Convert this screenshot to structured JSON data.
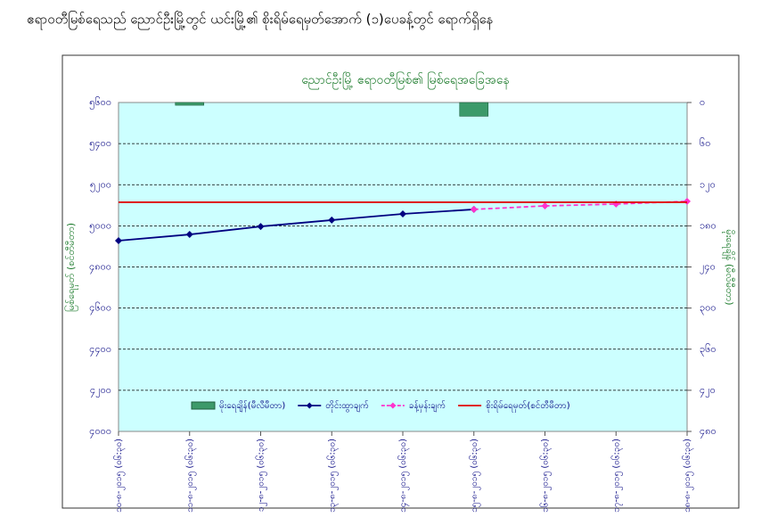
{
  "page_title": "ဧရာဝတီမြစ်ရေသည် ညောင်ဦးမြို့တွင် ယင်းမြို့၏ စိုးရိမ်ရေမှတ်အောက် (၁)ပေခန့်တွင် ရောက်ရှိနေ",
  "chart_data": {
    "type": "line",
    "title": "ညောင်ဦးမြို့ ဧရာဝတီမြစ်၏ မြစ်ရေအခြေအနေ",
    "y_label": "မြစ်ရေမှတ် (စင်တီမီတာ)",
    "y2_label": "မိုးရေချိန် (မီလီမီတာ)",
    "categories": [
      "၁၀-၈-၂၀၁၅ (၀၆:၃၀)",
      "၁၁-၈-၂၀၁၅ (၀၆:၃၀)",
      "၁၂-၈-၂၀၁၅ (၀၆:၃၀)",
      "၁၃-၈-၂၀၁၅ (၀၆:၃၀)",
      "၁၄-၈-၂၀၁၅ (၀၆:၃၀)",
      "၁၅-၈-၂၀၁၅ (၀၆:၃၀)",
      "၁၆-၈-၂၀၁၅ (၀၆:၃၀)",
      "၁၇-၈-၂၀၁၅ (၀၆:၃၀)",
      "၁၈-၈-၂၀၁၅ (၀၆:၃၀)"
    ],
    "ylim": [
      4000,
      5600
    ],
    "yticks": [
      {
        "value": 4000,
        "label": "၄၀၀၀"
      },
      {
        "value": 4200,
        "label": "၄၂၀၀"
      },
      {
        "value": 4400,
        "label": "၄၄၀၀"
      },
      {
        "value": 4600,
        "label": "၄၆၀၀"
      },
      {
        "value": 4800,
        "label": "၄၈၀၀"
      },
      {
        "value": 5000,
        "label": "၅၀၀၀"
      },
      {
        "value": 5200,
        "label": "၅၂၀၀"
      },
      {
        "value": 5400,
        "label": "၅၄၀၀"
      },
      {
        "value": 5600,
        "label": "၅၆၀၀"
      }
    ],
    "y2lim": [
      480,
      0
    ],
    "y2ticks": [
      {
        "value": 0,
        "label": "၀"
      },
      {
        "value": 60,
        "label": "၆၀"
      },
      {
        "value": 120,
        "label": "၁၂၀"
      },
      {
        "value": 180,
        "label": "၁၈၀"
      },
      {
        "value": 240,
        "label": "၂၄၀"
      },
      {
        "value": 300,
        "label": "၃၀၀"
      },
      {
        "value": 360,
        "label": "၃၆၀"
      },
      {
        "value": 420,
        "label": "၄၂၀"
      },
      {
        "value": 480,
        "label": "၄၈၀"
      }
    ],
    "grid": true,
    "series": [
      {
        "name": "မိုးရေချိန်(မီလီမီတာ)",
        "type": "bar",
        "axis": "y2",
        "color": "#3c9a6a",
        "values": [
          0,
          4,
          0,
          0,
          0,
          20,
          null,
          null,
          null
        ]
      },
      {
        "name": "တိုင်းထွာချက်",
        "type": "line",
        "color": "#000080",
        "dash": false,
        "marker": "diamond",
        "values": [
          4928,
          4958,
          4997,
          5028,
          5058,
          5080,
          null,
          null,
          null
        ]
      },
      {
        "name": "ခန့်မှန်းချက်",
        "type": "line",
        "color": "#ff33cc",
        "dash": true,
        "marker": "diamond",
        "values": [
          null,
          null,
          null,
          null,
          null,
          5080,
          5097,
          5106,
          5119
        ]
      },
      {
        "name": "စိုးရိမ်ရေမှတ်(စင်တီမီတာ)",
        "type": "line",
        "color": "#e00000",
        "dash": false,
        "marker": "none",
        "values": [
          5115,
          5115,
          5115,
          5115,
          5115,
          5115,
          5115,
          5115,
          5115
        ]
      }
    ]
  }
}
